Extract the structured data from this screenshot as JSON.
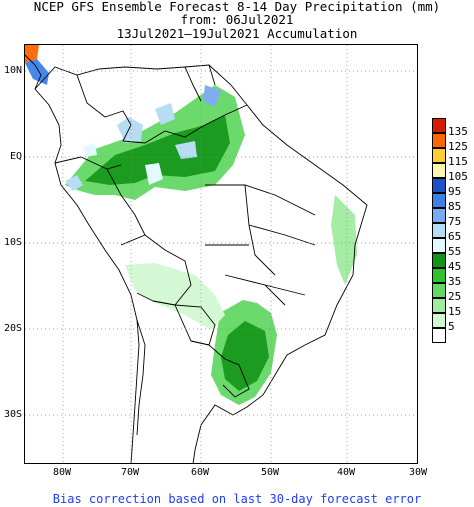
{
  "title": {
    "line1": "NCEP GFS Ensemble Forecast 8-14 Day Precipitation (mm)",
    "line2": "from: 06Jul2021",
    "line3": "13Jul2021–19Jul2021 Accumulation"
  },
  "footer": "Bias correction based on last 30-day forecast error",
  "axes": {
    "y_ticks": [
      "10N",
      "EQ",
      "10S",
      "20S",
      "30S"
    ],
    "x_ticks": [
      "80W",
      "70W",
      "60W",
      "50W",
      "40W",
      "30W"
    ],
    "lon_range": [
      -85,
      -30
    ],
    "lat_range": [
      -36,
      14
    ],
    "grid": true
  },
  "legend": {
    "levels": [
      {
        "label": "135",
        "color": "#d71a00"
      },
      {
        "label": "125",
        "color": "#ff6600"
      },
      {
        "label": "115",
        "color": "#ffcc33"
      },
      {
        "label": "105",
        "color": "#fff7b0"
      },
      {
        "label": "95",
        "color": "#1e50c8"
      },
      {
        "label": "85",
        "color": "#3c82e6"
      },
      {
        "label": "75",
        "color": "#78aaf0"
      },
      {
        "label": "65",
        "color": "#b4dcf5"
      },
      {
        "label": "55",
        "color": "#e1faff"
      },
      {
        "label": "45",
        "color": "#0f9614"
      },
      {
        "label": "35",
        "color": "#2dc32d"
      },
      {
        "label": "25",
        "color": "#64d764"
      },
      {
        "label": "15",
        "color": "#a0eba0"
      },
      {
        "label": "5",
        "color": "#d2f8d2"
      },
      {
        "label": "",
        "color": "#ffffff"
      }
    ]
  }
}
